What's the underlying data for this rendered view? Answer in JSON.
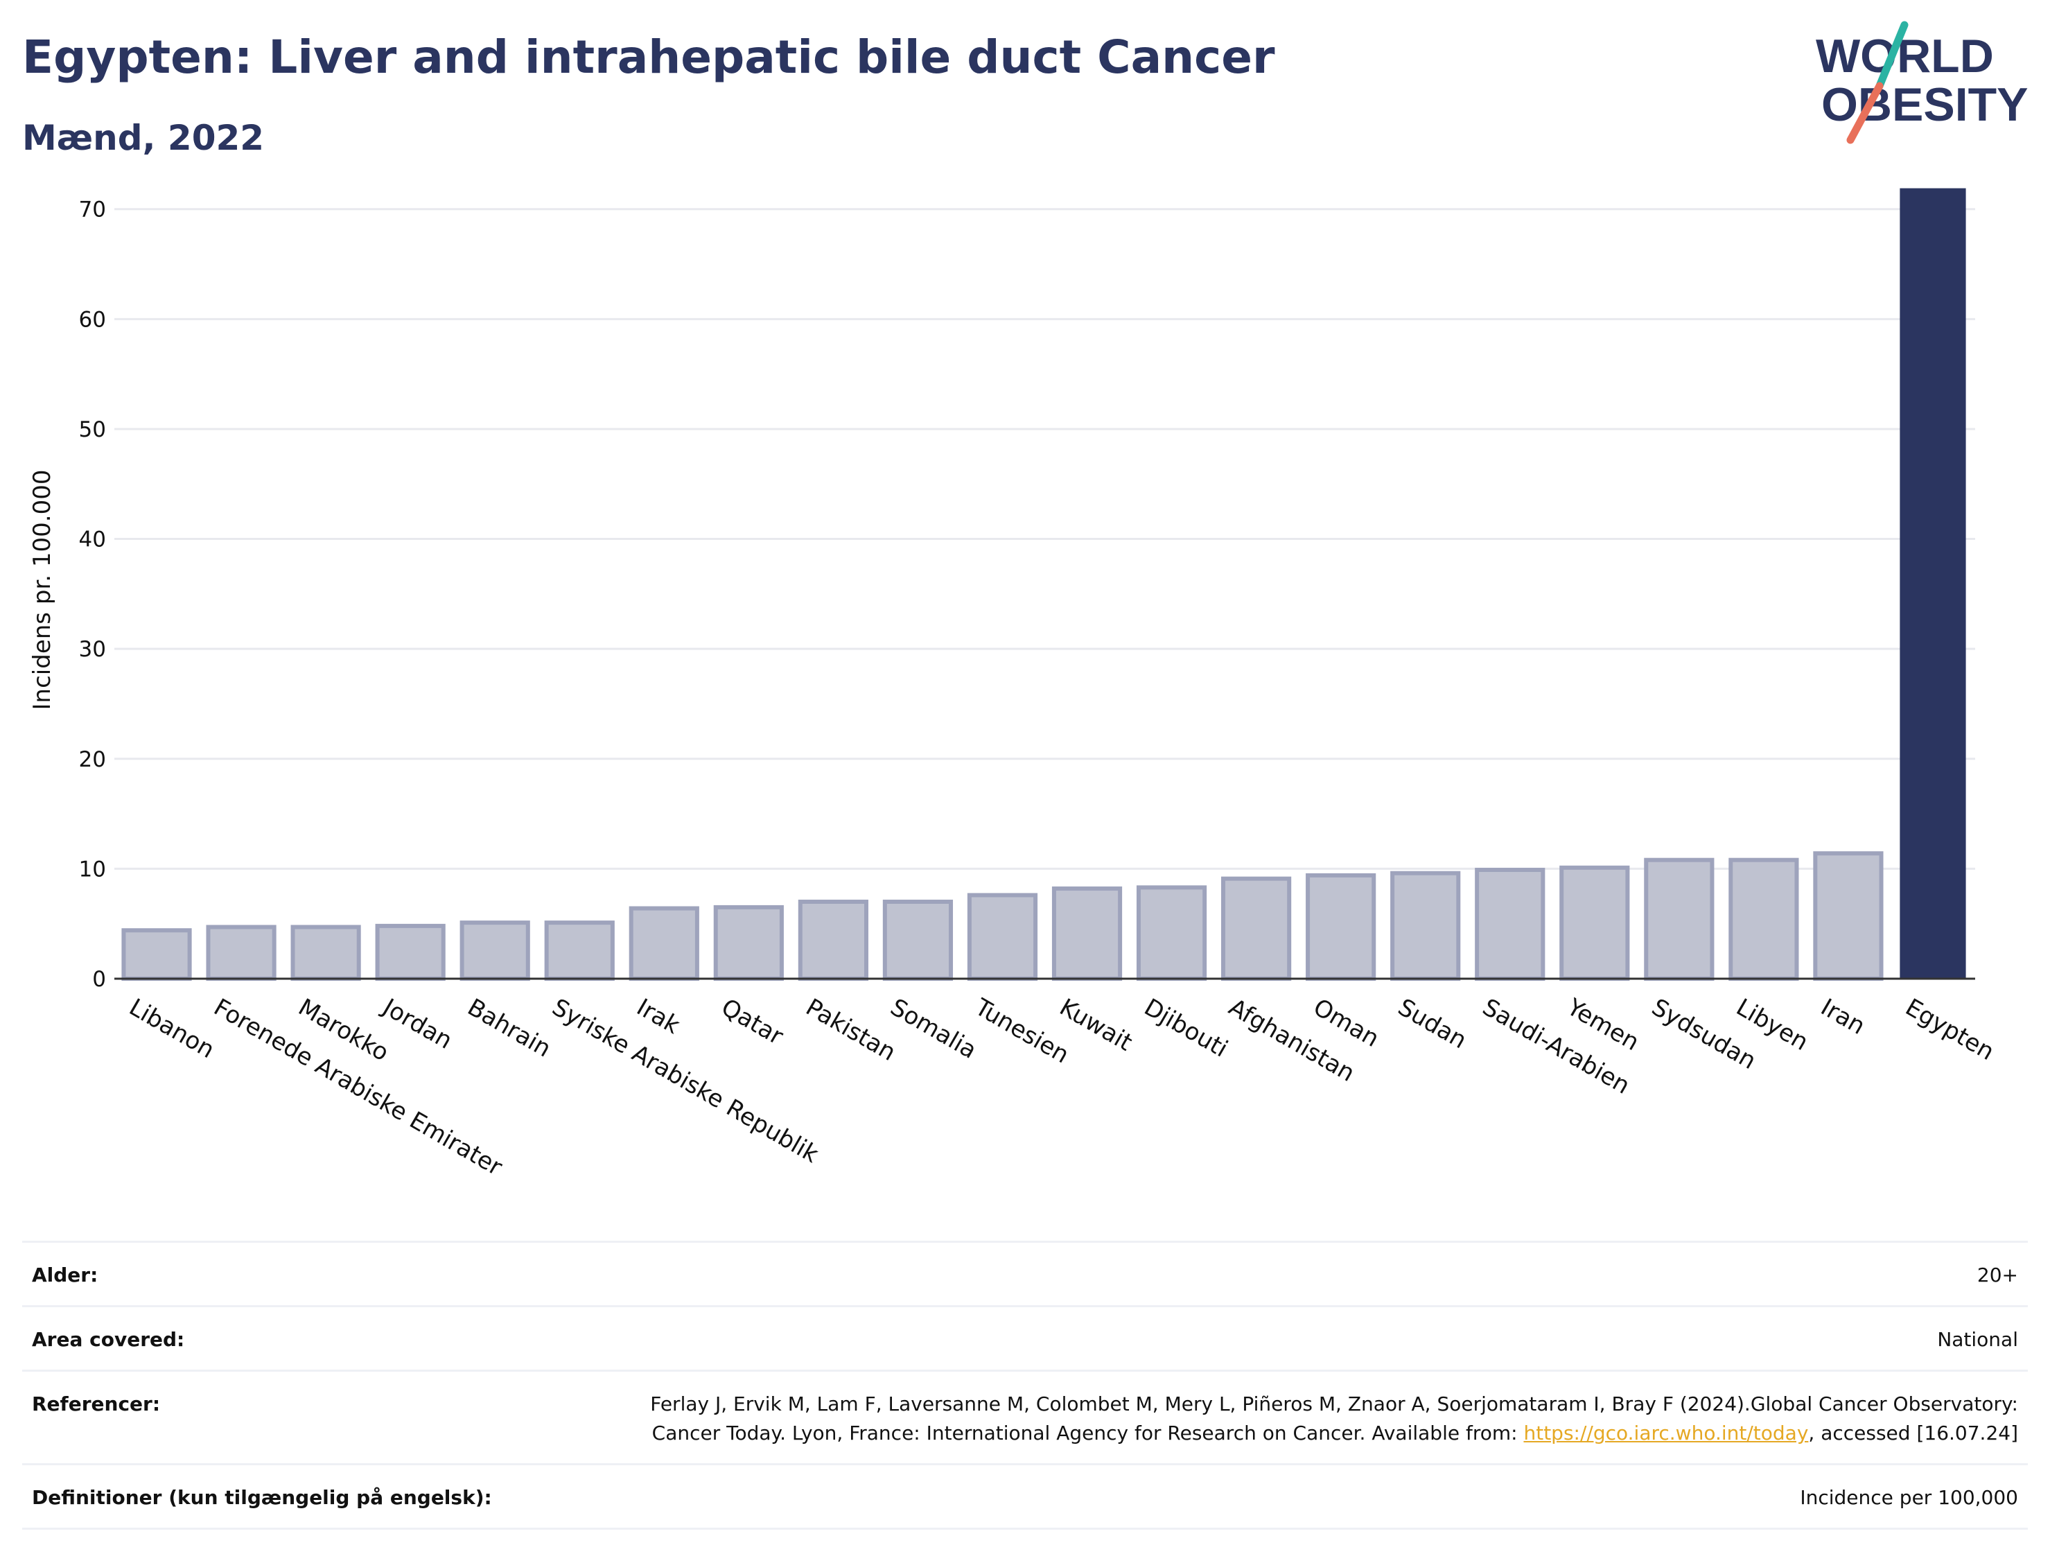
{
  "header": {
    "title": "Egypten: Liver and intrahepatic bile duct Cancer",
    "subtitle": "Mænd, 2022"
  },
  "logo": {
    "line1": "WORLD",
    "line2": "OBESITY",
    "colors": {
      "text": "#2b3560",
      "slash_teal": "#2bb3a3",
      "slash_red": "#e8705a"
    }
  },
  "chart_data": {
    "type": "bar",
    "title": "Egypten: Liver and intrahepatic bile duct Cancer",
    "subtitle": "Mænd, 2022",
    "xlabel": "",
    "ylabel": "Incidens pr. 100.000",
    "ylim": [
      0,
      72
    ],
    "yticks": [
      0,
      10,
      20,
      30,
      40,
      50,
      60,
      70
    ],
    "grid": true,
    "categories": [
      "Libanon",
      "Forenede Arabiske Emirater",
      "Marokko",
      "Jordan",
      "Bahrain",
      "Syriske Arabiske Republik",
      "Irak",
      "Qatar",
      "Pakistan",
      "Somalia",
      "Tunesien",
      "Kuwait",
      "Djibouti",
      "Afghanistan",
      "Oman",
      "Sudan",
      "Saudi-Arabien",
      "Yemen",
      "Sydsudan",
      "Libyen",
      "Iran",
      "Egypten"
    ],
    "values": [
      4.4,
      4.7,
      4.7,
      4.8,
      5.1,
      5.1,
      6.4,
      6.5,
      7.0,
      7.0,
      7.6,
      8.2,
      8.3,
      9.1,
      9.4,
      9.6,
      9.9,
      10.1,
      10.8,
      10.8,
      11.4,
      71.9
    ],
    "highlight": "Egypten",
    "colors": {
      "default_fill": "#bfc2d0",
      "default_stroke": "#9ea3bc",
      "highlight_fill": "#2b3560",
      "grid": "#e8e9ee",
      "axis": "#333333"
    }
  },
  "info": {
    "age_label": "Alder:",
    "age_value": "20+",
    "area_label": "Area covered:",
    "area_value": "National",
    "refs_label": "Referencer:",
    "refs_text_1": "Ferlay J, Ervik M, Lam F, Laversanne M, Colombet M, Mery L, Piñeros M, Znaor A, Soerjomataram I, Bray F (2024).Global Cancer Observatory: Cancer Today. Lyon, France: International Agency for Research on Cancer. Available from: ",
    "refs_link": "https://gco.iarc.who.int/today",
    "refs_text_2": ", accessed [16.07.24]",
    "defs_label": "Definitioner (kun tilgængelig på engelsk):",
    "defs_value": "Incidence per 100,000"
  }
}
